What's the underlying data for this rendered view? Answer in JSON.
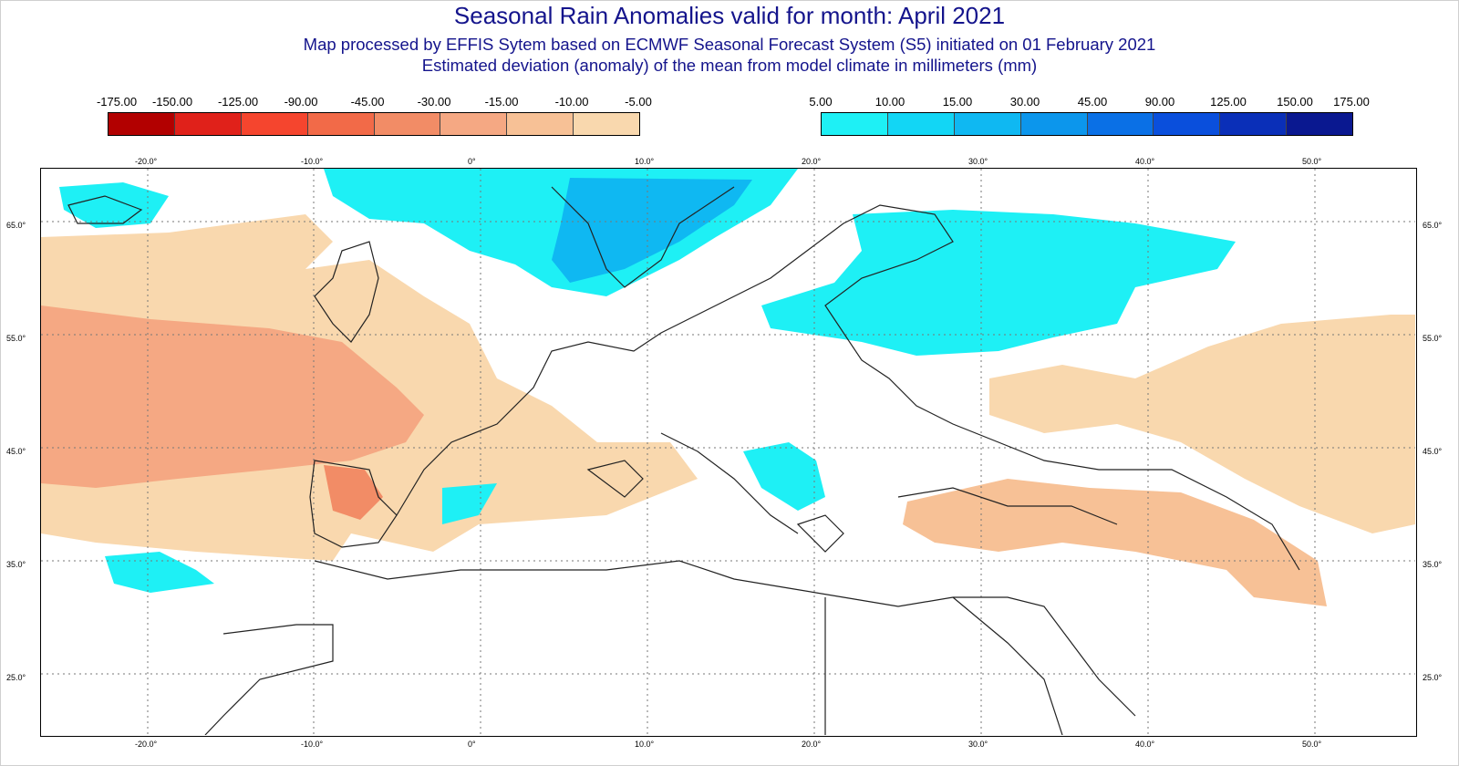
{
  "header": {
    "title": "Seasonal Rain Anomalies valid for month: April 2021",
    "subtitle1": "Map processed by EFFIS Sytem based on ECMWF Seasonal Forecast System (S5) initiated on 01 February 2021",
    "subtitle2": "Estimated deviation (anomaly) of the mean from model climate in millimeters (mm)"
  },
  "legend_dry": {
    "labels": [
      "-175.00",
      "-150.00",
      "-125.00",
      "-90.00",
      "-45.00",
      "-30.00",
      "-15.00",
      "-10.00",
      "-5.00"
    ],
    "colors": [
      "#b20000",
      "#e0211a",
      "#f5452e",
      "#f26a48",
      "#f28c66",
      "#f5a883",
      "#f7c196",
      "#f9d8ae"
    ]
  },
  "legend_wet": {
    "labels": [
      "5.00",
      "10.00",
      "15.00",
      "30.00",
      "45.00",
      "90.00",
      "125.00",
      "150.00",
      "175.00"
    ],
    "colors": [
      "#1ef0f5",
      "#12d6f5",
      "#0fb8f2",
      "#0c96ec",
      "#0a70e6",
      "#0a4fdc",
      "#0a2fb8",
      "#0a1890"
    ]
  },
  "map": {
    "lon_ticks": [
      "-20.0°",
      "-10.0°",
      "0°",
      "10.0°",
      "20.0°",
      "30.0°",
      "40.0°",
      "50.0°"
    ],
    "lat_ticks": [
      "65.0°",
      "55.0°",
      "45.0°",
      "35.0°",
      "25.0°"
    ],
    "regions": [
      {
        "name": "dry-atlantic",
        "color": "#f9d8ae"
      },
      {
        "name": "dry-atlantic-core",
        "color": "#f5a883"
      },
      {
        "name": "dry-iberia",
        "color": "#f28c66"
      },
      {
        "name": "dry-turkey",
        "color": "#f7c196"
      },
      {
        "name": "dry-russia",
        "color": "#f9d8ae"
      },
      {
        "name": "wet-norway",
        "color": "#1ef0f5"
      },
      {
        "name": "wet-norway-core",
        "color": "#0fb8f2"
      },
      {
        "name": "wet-baltic",
        "color": "#1ef0f5"
      },
      {
        "name": "wet-balkans",
        "color": "#1ef0f5"
      }
    ]
  }
}
